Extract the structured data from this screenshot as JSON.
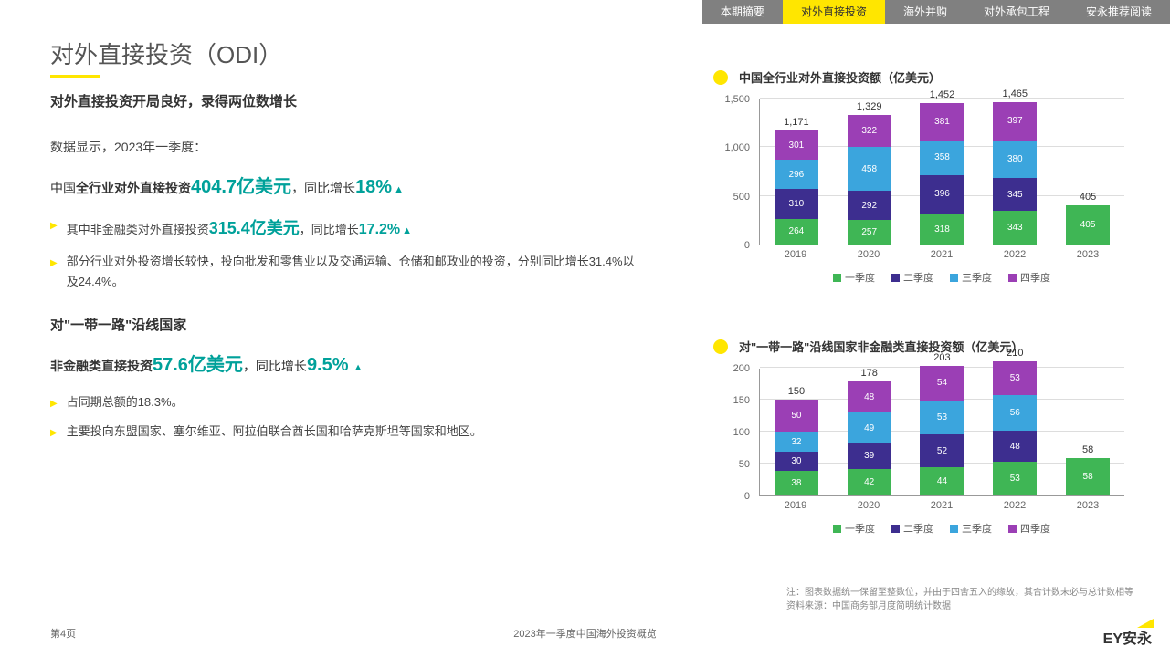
{
  "nav": {
    "items": [
      "本期摘要",
      "对外直接投资",
      "海外并购",
      "对外承包工程",
      "安永推荐阅读"
    ],
    "active": 1
  },
  "title": "对外直接投资（ODI）",
  "left": {
    "subtitle": "对外直接投资开局良好，录得两位数增长",
    "intro": "数据显示，2023年一季度：",
    "l1a": "中国",
    "l1b": "全行业对外直接投资",
    "l1v": "404.7亿美元",
    "l1c": "，同比增长",
    "l1p": "18%",
    "b1a": "其中非金融类对外直接投资",
    "b1v": "315.4亿美元",
    "b1c": "，同比增长",
    "b1p": "17.2%",
    "b2": "部分行业对外投资增长较快，投向批发和零售业以及交通运输、仓储和邮政业的投资，分别同比增长31.4%以及24.4%。",
    "s2t": "对\"一带一路\"沿线国家",
    "l2a": "非金融类直接投资",
    "l2v": "57.6亿美元",
    "l2c": "，同比增长",
    "l2p": "9.5%",
    "b3": "占同期总额的18.3%。",
    "b4": "主要投向东盟国家、塞尔维亚、阿拉伯联合酋长国和哈萨克斯坦等国家和地区。"
  },
  "colors": {
    "q1": "#3fb655",
    "q2": "#3d2e8f",
    "q3": "#3ba5dd",
    "q4": "#9b3fb5"
  },
  "chart1": {
    "title": "中国全行业对外直接投资额（亿美元）",
    "ymax": 1500,
    "ystep": 500,
    "height": 160,
    "years": [
      "2019",
      "2020",
      "2021",
      "2022",
      "2023"
    ],
    "totals": [
      1171,
      1329,
      1452,
      1465,
      405
    ],
    "data": [
      [
        264,
        310,
        296,
        301
      ],
      [
        257,
        292,
        458,
        322
      ],
      [
        318,
        396,
        358,
        381
      ],
      [
        343,
        345,
        380,
        397
      ],
      [
        405
      ]
    ]
  },
  "chart2": {
    "title": "对\"一带一路\"沿线国家非金融类直接投资额（亿美元）",
    "ymax": 200,
    "ystep": 50,
    "height": 140,
    "years": [
      "2019",
      "2020",
      "2021",
      "2022",
      "2023"
    ],
    "totals": [
      150,
      178,
      203,
      210,
      58
    ],
    "data": [
      [
        38,
        30,
        32,
        50
      ],
      [
        42,
        39,
        49,
        48
      ],
      [
        44,
        52,
        53,
        54
      ],
      [
        53,
        48,
        56,
        53
      ],
      [
        58
      ]
    ]
  },
  "legend": [
    "一季度",
    "二季度",
    "三季度",
    "四季度"
  ],
  "note1": "注：图表数据统一保留至整数位，并由于四舍五入的缘故，其合计数未必与总计数相等",
  "note2": "资料来源：中国商务部月度简明统计数据",
  "page": "第4页",
  "doc": "2023年一季度中国海外投资概览",
  "logo": "EY安永"
}
